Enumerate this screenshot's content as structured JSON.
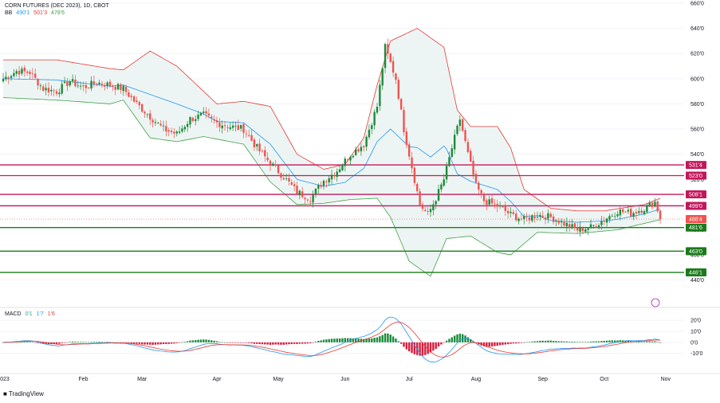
{
  "header": {
    "symbol": "CORN FUTURES (DEC 2023), 1D, CBOT",
    "bb_label": "BB",
    "bb_values": [
      "490'1",
      "501'3",
      "478'6"
    ],
    "macd_label": "MACD",
    "macd_values": [
      "0'1",
      "1'7",
      "1'6"
    ]
  },
  "footer": {
    "brand": "TradingView"
  },
  "colors": {
    "up": "#26a69a",
    "down": "#ef5350",
    "green_up": "#1e8a3a",
    "bb_upper": "#e53935",
    "bb_lower": "#43a047",
    "bb_basis": "#2196f3",
    "bb_fill": "#e8f3f1",
    "resistance": "#c2185b",
    "support": "#1b7a1b"
  },
  "chart_data": [
    {
      "type": "candlestick",
      "title": "CORN FUTURES (DEC 2023), 1D, CBOT",
      "y_axis_ticks": [
        "660'0",
        "640'0",
        "620'0",
        "600'0",
        "580'0",
        "560'0",
        "540'0",
        "520'0",
        "500'0",
        "480'0",
        "460'0",
        "440'0"
      ],
      "y_range": [
        436,
        660
      ],
      "x_axis_labels": [
        "2023",
        "Feb",
        "Mar",
        "Apr",
        "May",
        "Jun",
        "Jul",
        "Aug",
        "Sep",
        "Oct",
        "Nov"
      ],
      "price_labels": [
        {
          "text": "531'4",
          "value": 531.5,
          "color": "resistance"
        },
        {
          "text": "523'0",
          "value": 523.0,
          "color": "resistance"
        },
        {
          "text": "508'1",
          "value": 508.1,
          "color": "resistance"
        },
        {
          "text": "499'0",
          "value": 499.0,
          "color": "resistance"
        },
        {
          "text": "488'4",
          "value": 488.5,
          "color": "current"
        },
        {
          "text": "481'6",
          "value": 481.75,
          "color": "support"
        },
        {
          "text": "463'0",
          "value": 463.0,
          "color": "support"
        },
        {
          "text": "446'1",
          "value": 446.1,
          "color": "support"
        }
      ],
      "resistance_levels": [
        531.5,
        523.0,
        508.1,
        499.0
      ],
      "support_levels": [
        481.75,
        463.0,
        446.1
      ],
      "current_price": 488.5,
      "close_anchors": [
        [
          0,
          600
        ],
        [
          5,
          606
        ],
        [
          10,
          605
        ],
        [
          15,
          592
        ],
        [
          20,
          590
        ],
        [
          25,
          598
        ],
        [
          30,
          593
        ],
        [
          35,
          597
        ],
        [
          40,
          595
        ],
        [
          45,
          592
        ],
        [
          50,
          580
        ],
        [
          55,
          570
        ],
        [
          60,
          560
        ],
        [
          65,
          556
        ],
        [
          70,
          568
        ],
        [
          75,
          571
        ],
        [
          80,
          565
        ],
        [
          85,
          562
        ],
        [
          90,
          560
        ],
        [
          95,
          545
        ],
        [
          100,
          533
        ],
        [
          105,
          522
        ],
        [
          110,
          510
        ],
        [
          115,
          505
        ],
        [
          120,
          519
        ],
        [
          125,
          527
        ],
        [
          130,
          540
        ],
        [
          135,
          548
        ],
        [
          140,
          578
        ],
        [
          143,
          625
        ],
        [
          147,
          600
        ],
        [
          150,
          560
        ],
        [
          153,
          530
        ],
        [
          156,
          500
        ],
        [
          159,
          492
        ],
        [
          162,
          505
        ],
        [
          165,
          520
        ],
        [
          168,
          545
        ],
        [
          171,
          568
        ],
        [
          174,
          540
        ],
        [
          177,
          515
        ],
        [
          180,
          503
        ],
        [
          185,
          499
        ],
        [
          190,
          492
        ],
        [
          195,
          488
        ],
        [
          200,
          492
        ],
        [
          205,
          490
        ],
        [
          210,
          485
        ],
        [
          215,
          480
        ],
        [
          220,
          482
        ],
        [
          225,
          488
        ],
        [
          230,
          495
        ],
        [
          235,
          493
        ],
        [
          240,
          497
        ],
        [
          244,
          502
        ],
        [
          246,
          490
        ]
      ],
      "bollinger_upper_anchors": [
        [
          0,
          615
        ],
        [
          20,
          615
        ],
        [
          40,
          608
        ],
        [
          45,
          607
        ],
        [
          55,
          622
        ],
        [
          65,
          610
        ],
        [
          80,
          580
        ],
        [
          90,
          582
        ],
        [
          100,
          578
        ],
        [
          110,
          540
        ],
        [
          120,
          528
        ],
        [
          128,
          532
        ],
        [
          135,
          553
        ],
        [
          140,
          595
        ],
        [
          145,
          630
        ],
        [
          155,
          640
        ],
        [
          165,
          625
        ],
        [
          170,
          575
        ],
        [
          175,
          562
        ],
        [
          185,
          562
        ],
        [
          190,
          545
        ],
        [
          195,
          512
        ],
        [
          205,
          497
        ],
        [
          215,
          495
        ],
        [
          225,
          495
        ],
        [
          240,
          500
        ],
        [
          246,
          505
        ]
      ],
      "bollinger_lower_anchors": [
        [
          0,
          585
        ],
        [
          20,
          583
        ],
        [
          40,
          580
        ],
        [
          45,
          583
        ],
        [
          55,
          553
        ],
        [
          65,
          550
        ],
        [
          75,
          554
        ],
        [
          90,
          548
        ],
        [
          100,
          518
        ],
        [
          110,
          500
        ],
        [
          120,
          501
        ],
        [
          130,
          504
        ],
        [
          140,
          505
        ],
        [
          145,
          490
        ],
        [
          152,
          455
        ],
        [
          160,
          443
        ],
        [
          166,
          473
        ],
        [
          175,
          475
        ],
        [
          185,
          462
        ],
        [
          190,
          460
        ],
        [
          200,
          478
        ],
        [
          215,
          477
        ],
        [
          230,
          480
        ],
        [
          246,
          488
        ]
      ]
    },
    {
      "type": "bar",
      "title": "MACD",
      "y_axis_ticks": [
        "20'0",
        "10'0",
        "0'0",
        "-10'0"
      ],
      "y_range": [
        -16,
        23
      ]
    }
  ]
}
